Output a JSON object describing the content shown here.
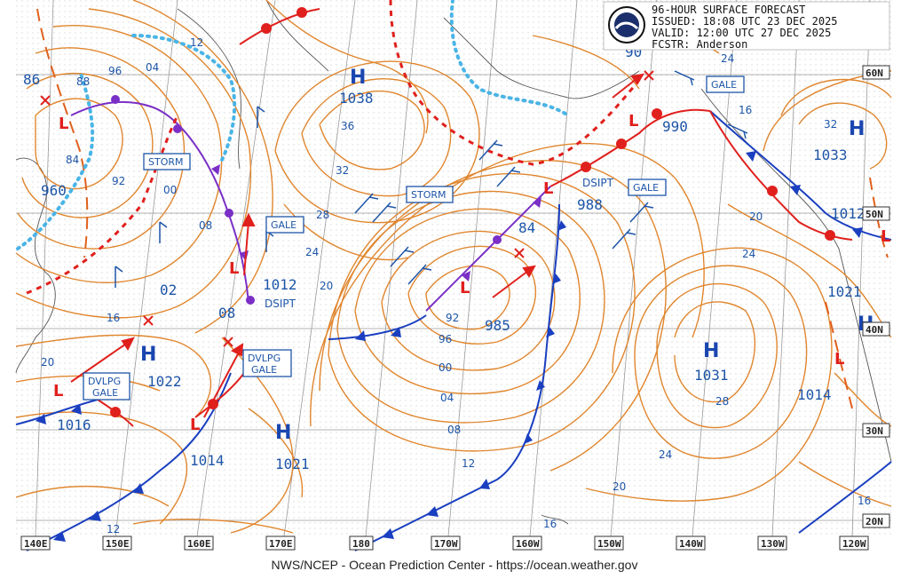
{
  "header": {
    "line1": "96-HOUR SURFACE FORECAST",
    "line2": "ISSUED: 18:08 UTC 23 DEC 2025",
    "line3": "VALID:  12:00 UTC 27 DEC 2025",
    "line4": "FCSTR:  Anderson"
  },
  "footer": "NWS/NCEP - Ocean Prediction Center - https://ocean.weather.gov",
  "axes": {
    "bottom": [
      "140E",
      "150E",
      "160E",
      "170E",
      "180",
      "170W",
      "160W",
      "150W",
      "140W",
      "130W",
      "120W"
    ],
    "right": [
      "60N",
      "50N",
      "40N",
      "30N",
      "20N"
    ]
  },
  "highs": [
    {
      "letter": "H",
      "value": "1038"
    },
    {
      "letter": "H",
      "value": "1033"
    },
    {
      "letter": "H",
      "value": "1022"
    },
    {
      "letter": "H",
      "value": "1021"
    },
    {
      "letter": "H",
      "value": "1031"
    },
    {
      "letter": "H",
      "value": ""
    }
  ],
  "lows": [
    {
      "letter": "L",
      "value": "960"
    },
    {
      "letter": "L",
      "value": "990"
    },
    {
      "letter": "L",
      "value": "988"
    },
    {
      "letter": "L",
      "value": "1012"
    },
    {
      "letter": "L",
      "value": "985"
    },
    {
      "letter": "L",
      "value": "1016"
    },
    {
      "letter": "L",
      "value": "1014"
    },
    {
      "letter": "L",
      "value": "1012"
    },
    {
      "letter": "L",
      "value": "1014"
    },
    {
      "letter": "L",
      "value": "1021"
    }
  ],
  "warnings": [
    {
      "text": "STORM"
    },
    {
      "text": "STORM"
    },
    {
      "text": "GALE"
    },
    {
      "text": "GALE"
    },
    {
      "text": "GALE"
    },
    {
      "text": "DVLPG",
      "text2": "GALE"
    },
    {
      "text": "DVLPG",
      "text2": "GALE"
    }
  ],
  "annotations": [
    "DSIPT",
    "DSIPT"
  ],
  "isobar_labels": [
    "86",
    "88",
    "96",
    "04",
    "12",
    "84",
    "92",
    "00",
    "08",
    "02",
    "16",
    "20",
    "36",
    "32",
    "28",
    "24",
    "20",
    "08",
    "90",
    "24",
    "16",
    "32",
    "20",
    "24",
    "28",
    "84",
    "92",
    "96",
    "00",
    "04",
    "08",
    "12",
    "16",
    "20",
    "24",
    "16",
    "12"
  ]
}
